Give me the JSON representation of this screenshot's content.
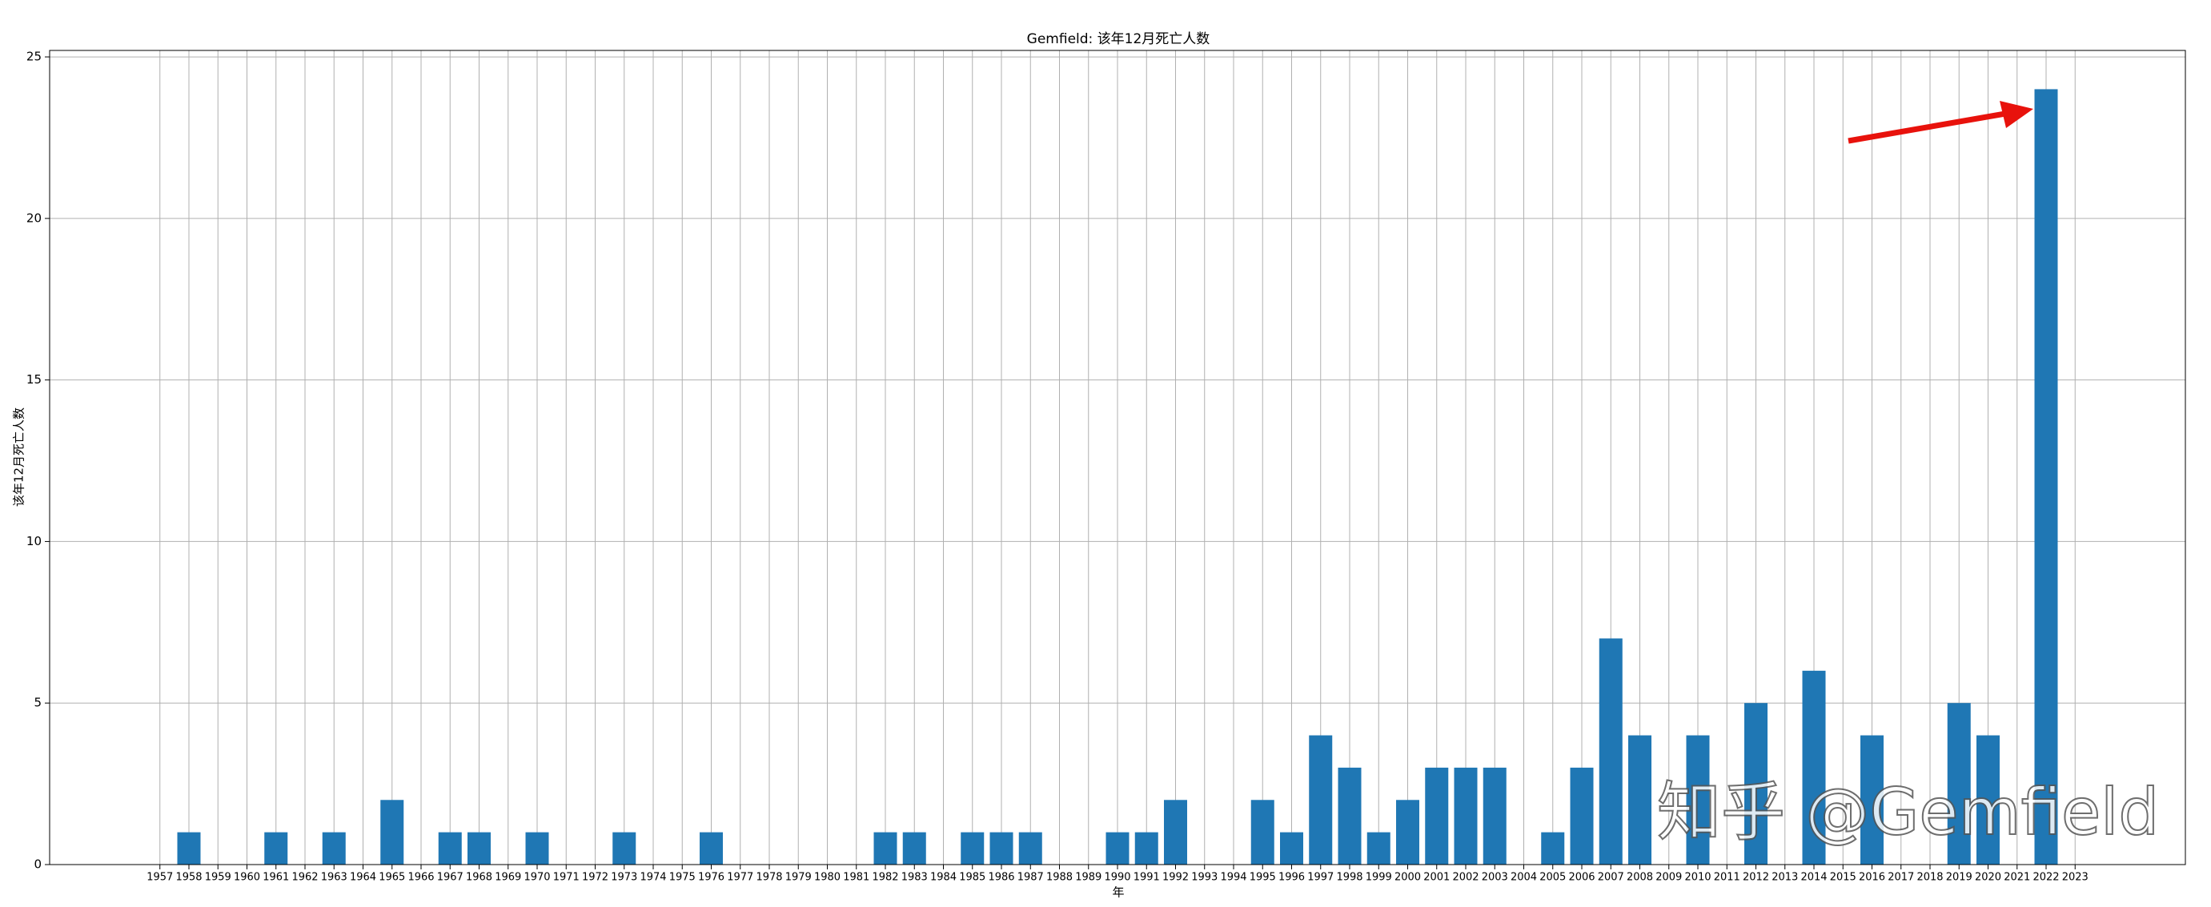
{
  "chart_data": {
    "type": "bar",
    "title": "Gemfield: 该年12月死亡人数",
    "xlabel": "年",
    "ylabel": "该年12月死亡人数",
    "watermark": "知乎 @Gemfield",
    "x": [
      1958,
      1961,
      1963,
      1965,
      1967,
      1968,
      1970,
      1973,
      1976,
      1982,
      1983,
      1985,
      1986,
      1987,
      1990,
      1991,
      1992,
      1995,
      1996,
      1997,
      1998,
      1999,
      2000,
      2001,
      2002,
      2003,
      2005,
      2006,
      2007,
      2008,
      2010,
      2012,
      2014,
      2016,
      2019,
      2020,
      2022
    ],
    "values": [
      1,
      1,
      1,
      2,
      1,
      1,
      1,
      1,
      1,
      1,
      1,
      1,
      1,
      1,
      1,
      1,
      2,
      2,
      1,
      4,
      3,
      1,
      2,
      3,
      3,
      3,
      1,
      3,
      7,
      4,
      4,
      5,
      6,
      4,
      5,
      4,
      24
    ],
    "color": "#1f77b4",
    "xlim": [
      1953.2,
      2026.8
    ],
    "xticks": [
      1957,
      1958,
      1959,
      1960,
      1961,
      1962,
      1963,
      1964,
      1965,
      1966,
      1967,
      1968,
      1969,
      1970,
      1971,
      1972,
      1973,
      1974,
      1975,
      1976,
      1977,
      1978,
      1979,
      1980,
      1981,
      1982,
      1983,
      1984,
      1985,
      1986,
      1987,
      1988,
      1989,
      1990,
      1991,
      1992,
      1993,
      1994,
      1995,
      1996,
      1997,
      1998,
      1999,
      2000,
      2001,
      2002,
      2003,
      2004,
      2005,
      2006,
      2007,
      2008,
      2009,
      2010,
      2011,
      2012,
      2013,
      2014,
      2015,
      2016,
      2017,
      2018,
      2019,
      2020,
      2021,
      2022,
      2023
    ],
    "ylim": [
      0,
      25.2
    ],
    "yticks": [
      0,
      5,
      10,
      15,
      20,
      25
    ],
    "grid": true
  }
}
